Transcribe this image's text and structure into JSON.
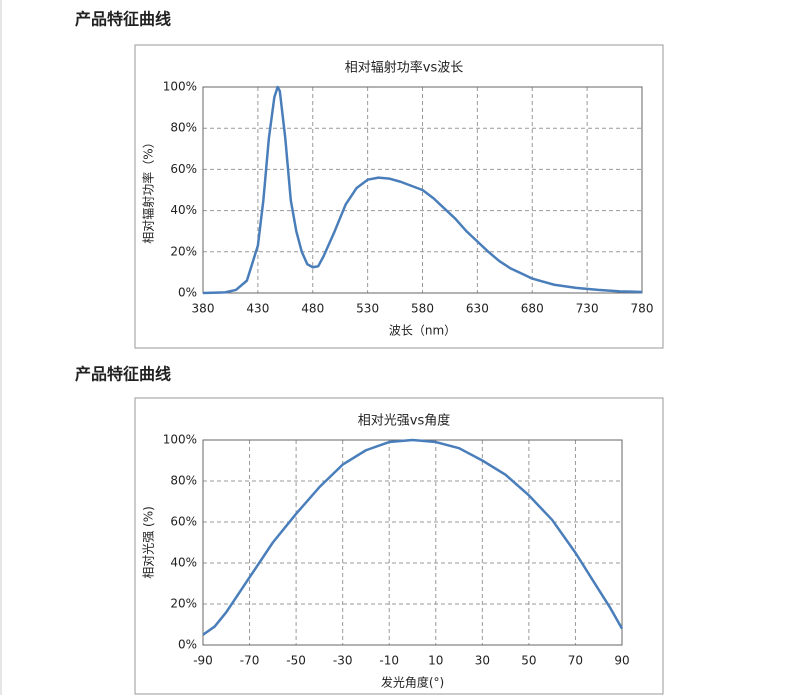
{
  "headings": [
    "产品特征曲线",
    "产品特征曲线"
  ],
  "chart_data": [
    {
      "type": "line",
      "title": "相对辐射功率vs波长",
      "x_label": "波长（nm）",
      "y_label": "相对辐射功率（%）",
      "x": [
        380,
        400,
        410,
        420,
        430,
        435,
        440,
        445,
        448,
        450,
        455,
        460,
        465,
        470,
        475,
        480,
        485,
        490,
        500,
        510,
        520,
        530,
        540,
        550,
        560,
        570,
        580,
        590,
        600,
        610,
        620,
        630,
        640,
        650,
        660,
        670,
        680,
        690,
        700,
        720,
        740,
        760,
        780
      ],
      "series": [
        {
          "name": "相对辐射功率",
          "color": "#4a7ebb",
          "values": [
            0,
            0.3,
            1.5,
            6,
            23,
            45,
            75,
            95,
            100,
            98,
            75,
            45,
            30,
            20,
            14,
            12.5,
            13,
            18,
            30,
            43,
            51,
            55,
            56,
            55.5,
            54,
            52,
            50,
            46,
            41,
            36,
            30,
            25,
            20,
            15.5,
            12,
            9.5,
            7,
            5.5,
            4,
            2.5,
            1.5,
            0.8,
            0.5
          ]
        }
      ],
      "xlim": [
        380,
        780
      ],
      "xticks": [
        380,
        430,
        480,
        530,
        580,
        630,
        680,
        730,
        780
      ],
      "ylim": [
        0,
        100
      ],
      "yticks": [
        {
          "value": 0,
          "label": "0%"
        },
        {
          "value": 20,
          "label": "20%"
        },
        {
          "value": 40,
          "label": "40%"
        },
        {
          "value": 60,
          "label": "60%"
        },
        {
          "value": 80,
          "label": "80%"
        },
        {
          "value": 100,
          "label": "100%"
        }
      ],
      "grid": true
    },
    {
      "type": "line",
      "title": "相对光强vs角度",
      "x_label": "发光角度(°)",
      "y_label": "相对光强 (%)",
      "x": [
        -90,
        -85,
        -80,
        -70,
        -60,
        -50,
        -40,
        -30,
        -20,
        -10,
        0,
        10,
        20,
        30,
        40,
        50,
        60,
        70,
        80,
        85,
        90
      ],
      "series": [
        {
          "name": "相对光强",
          "color": "#4a7ebb",
          "values": [
            5,
            9,
            16,
            33,
            50,
            64,
            77,
            88,
            95,
            99,
            100,
            99,
            96,
            90,
            83,
            73,
            61,
            45,
            27,
            18,
            8
          ]
        }
      ],
      "xlim": [
        -90,
        90
      ],
      "xticks": [
        -90,
        -70,
        -50,
        -30,
        -10,
        10,
        30,
        50,
        70,
        90
      ],
      "ylim": [
        0,
        100
      ],
      "yticks": [
        {
          "value": 0,
          "label": "0%"
        },
        {
          "value": 20,
          "label": "20%"
        },
        {
          "value": 40,
          "label": "40%"
        },
        {
          "value": 60,
          "label": "60%"
        },
        {
          "value": 80,
          "label": "80%"
        },
        {
          "value": 100,
          "label": "100%"
        }
      ],
      "grid": true
    }
  ]
}
